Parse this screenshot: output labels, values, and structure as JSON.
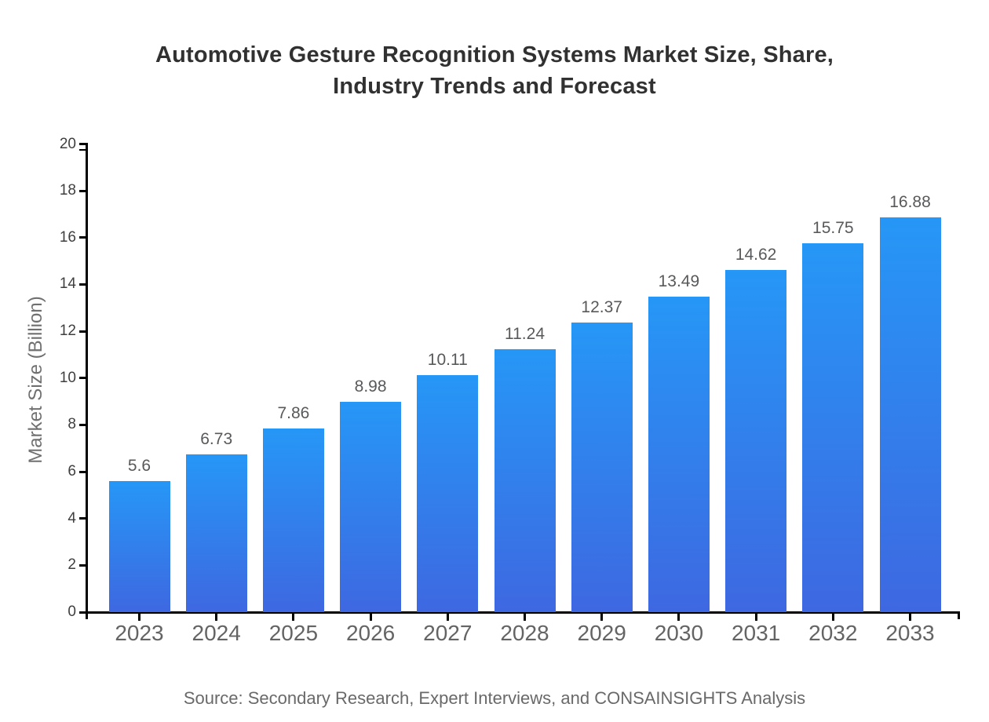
{
  "chart_data": {
    "type": "bar",
    "title": "Automotive Gesture Recognition Systems Market Size, Share, Industry Trends and Forecast",
    "title_lines": [
      "Automotive Gesture Recognition Systems Market Size, Share,",
      "Industry Trends and Forecast"
    ],
    "categories": [
      "2023",
      "2024",
      "2025",
      "2026",
      "2027",
      "2028",
      "2029",
      "2030",
      "2031",
      "2032",
      "2033"
    ],
    "values": [
      5.6,
      6.73,
      7.86,
      8.98,
      10.11,
      11.24,
      12.37,
      13.49,
      14.62,
      15.75,
      16.88
    ],
    "value_labels": [
      "5.6",
      "6.73",
      "7.86",
      "8.98",
      "10.11",
      "11.24",
      "12.37",
      "13.49",
      "14.62",
      "15.75",
      "16.88"
    ],
    "xlabel": "",
    "ylabel": "Market Size (Billion)",
    "ylim": [
      0,
      20
    ],
    "ytick_step": 2,
    "yticks": [
      0,
      2,
      4,
      6,
      8,
      10,
      12,
      14,
      16,
      18,
      20
    ],
    "grid": false,
    "legend_position": "none",
    "source": "Source: Secondary Research, Expert Interviews, and CONSAINSIGHTS Analysis",
    "colors": {
      "bar_gradient_top": "#2697f6",
      "bar_gradient_bottom": "#3e68e1",
      "axis": "#000000",
      "title_text": "#313131",
      "value_label_text": "#58595b",
      "x_tick_text": "#646464",
      "y_tick_text": "#3f3f3f",
      "y_axis_title_text": "#707070",
      "source_text": "#696969"
    }
  }
}
